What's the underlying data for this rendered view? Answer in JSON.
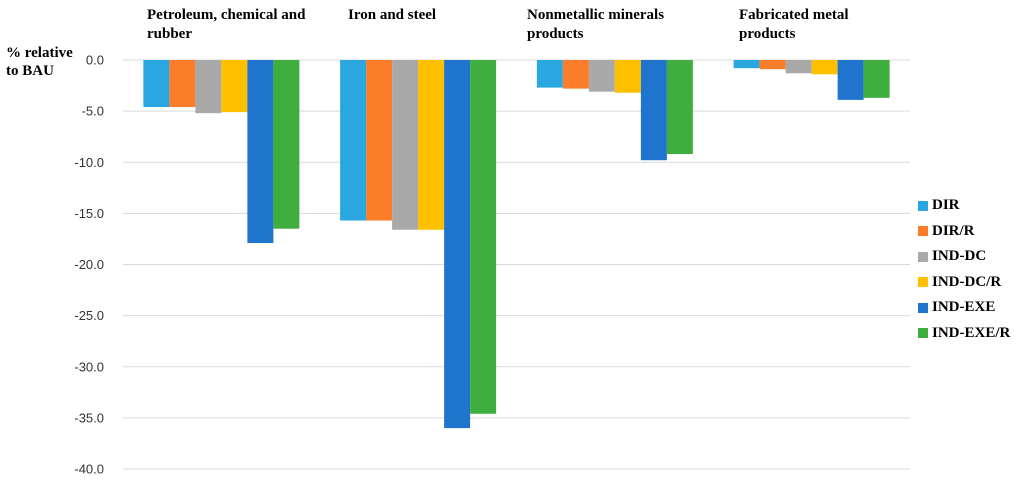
{
  "chart_data": {
    "type": "bar",
    "ylabel": "% relative to BAU",
    "ylim": [
      -40,
      0
    ],
    "yticks": [
      "0.0",
      "-5.0",
      "-10.0",
      "-15.0",
      "-20.0",
      "-25.0",
      "-30.0",
      "-35.0",
      "-40.0"
    ],
    "grid": true,
    "legend_position": "right",
    "categories": [
      "Petroleum, chemical and rubber",
      "Iron and steel",
      "Nonmetallic minerals products",
      "Fabricated metal products"
    ],
    "series": [
      {
        "name": "DIR",
        "color": "#2aa7e0",
        "values": [
          -4.6,
          -15.7,
          -2.7,
          -0.8
        ]
      },
      {
        "name": "DIR/R",
        "color": "#fb7d2a",
        "values": [
          -4.6,
          -15.7,
          -2.8,
          -0.9
        ]
      },
      {
        "name": "IND-DC",
        "color": "#a9a9a9",
        "values": [
          -5.2,
          -16.6,
          -3.1,
          -1.3
        ]
      },
      {
        "name": "IND-DC/R",
        "color": "#ffc000",
        "values": [
          -5.1,
          -16.6,
          -3.2,
          -1.4
        ]
      },
      {
        "name": "IND-EXE",
        "color": "#1f74cd",
        "values": [
          -17.9,
          -36.0,
          -9.8,
          -3.9
        ]
      },
      {
        "name": "IND-EXE/R",
        "color": "#3fae3f",
        "values": [
          -16.5,
          -34.6,
          -9.2,
          -3.7
        ]
      }
    ]
  }
}
